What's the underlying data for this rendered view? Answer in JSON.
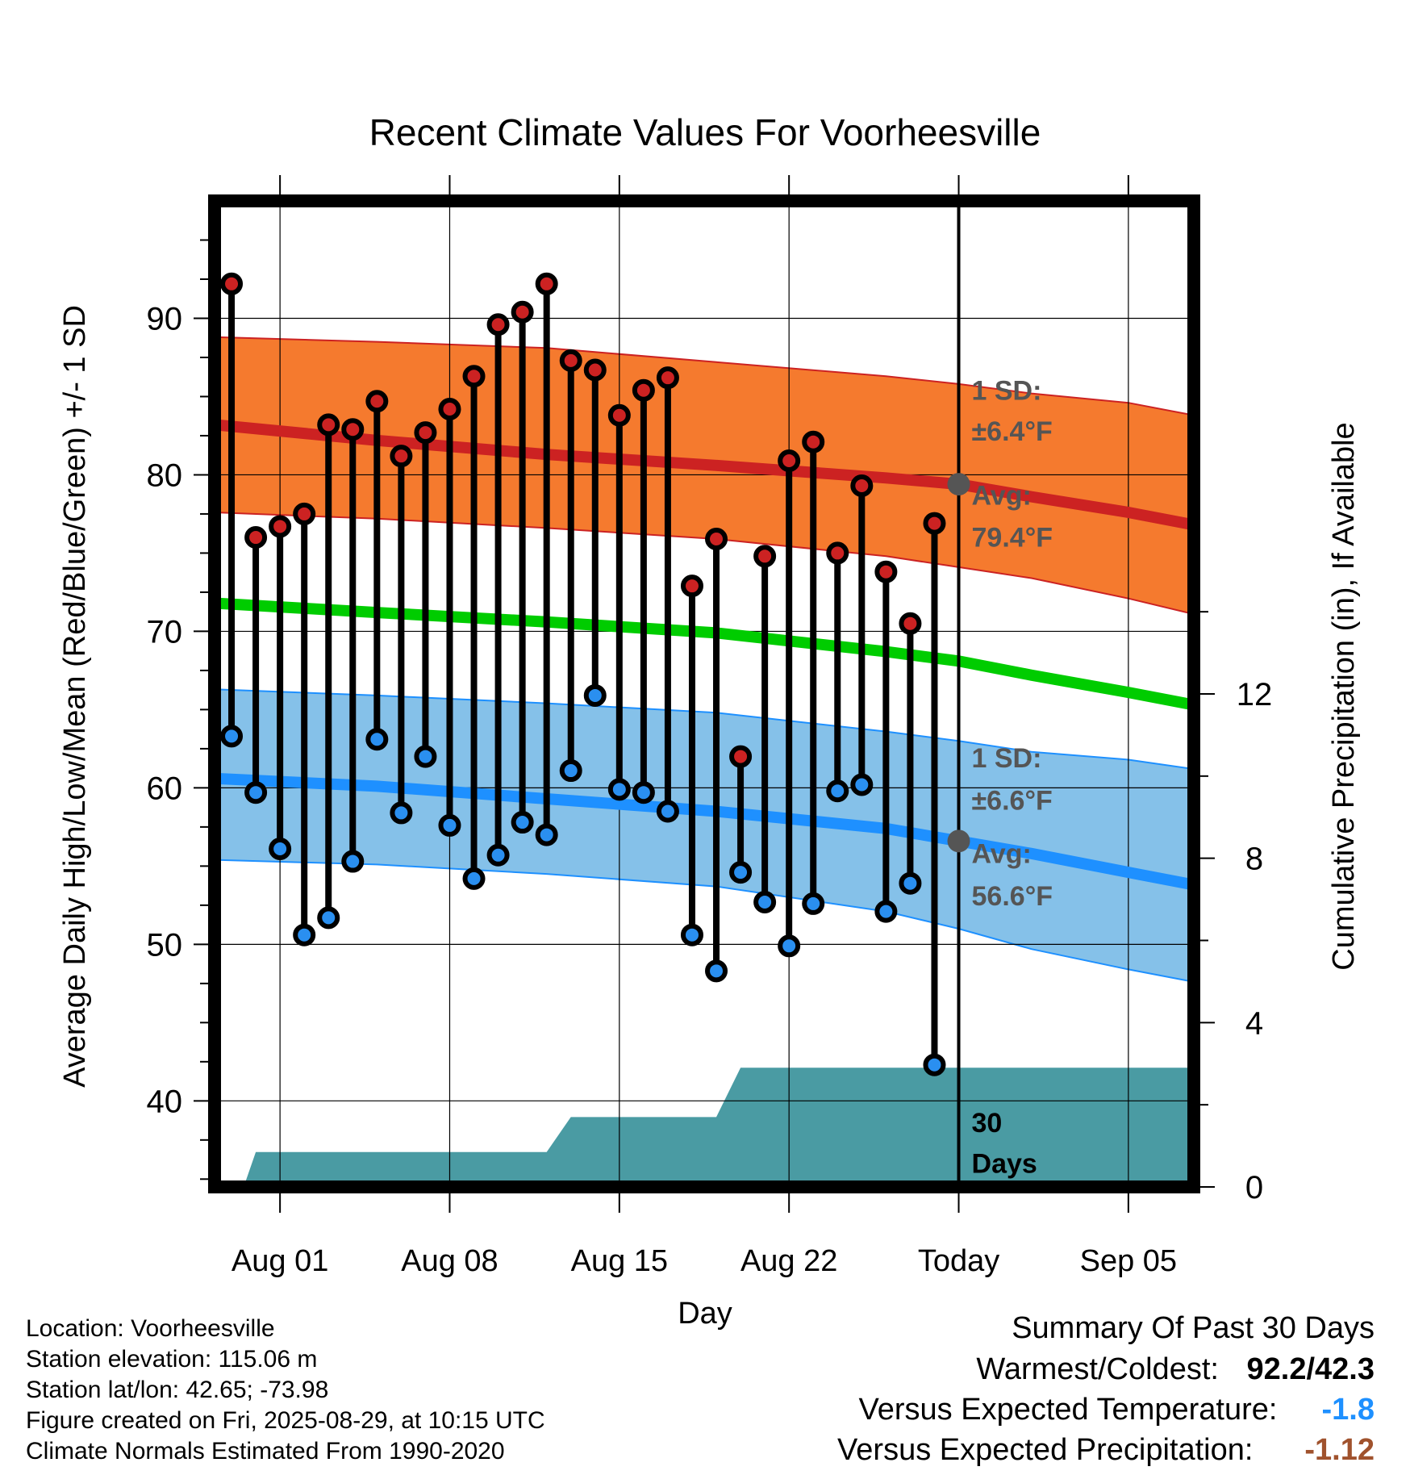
{
  "chart_data": {
    "type": "line",
    "title": "Recent Climate Values For Voorheesville",
    "xlabel": "Day",
    "ylabel": "Average Daily High/Low/Mean (Red/Blue/Green) +/- 1 SD",
    "y2label": "Cumulative Precipitation (in), If Available",
    "ylim": [
      34.5,
      97.5
    ],
    "y2lim": [
      0,
      24
    ],
    "y_ticks": [
      40,
      50,
      60,
      70,
      80,
      90
    ],
    "y2_ticks": [
      0,
      4,
      8,
      12
    ],
    "x_ticks": [
      {
        "label": "Aug 01",
        "day": 1
      },
      {
        "label": "Aug 08",
        "day": 8
      },
      {
        "label": "Aug 15",
        "day": 15
      },
      {
        "label": "Aug 22",
        "day": 22
      },
      {
        "label": "Today",
        "day": 29
      },
      {
        "label": "Sep 05",
        "day": 36
      }
    ],
    "xlim": [
      -1.7,
      38.7
    ],
    "grid": true,
    "days": [
      -1,
      0,
      1,
      2,
      3,
      4,
      5,
      6,
      7,
      8,
      9,
      10,
      11,
      12,
      13,
      14,
      15,
      16,
      17,
      18,
      19,
      20,
      21,
      22,
      23,
      24,
      25,
      26,
      27,
      28
    ],
    "daily_high": [
      92.2,
      76.0,
      76.7,
      77.5,
      83.2,
      82.9,
      84.7,
      81.2,
      82.7,
      84.2,
      86.3,
      89.6,
      90.4,
      92.2,
      87.3,
      86.7,
      83.8,
      85.4,
      86.2,
      72.9,
      75.9,
      62.0,
      74.8,
      80.9,
      82.1,
      75.0,
      79.3,
      73.8,
      70.5,
      76.9
    ],
    "daily_low": [
      63.3,
      59.7,
      56.1,
      50.6,
      51.7,
      55.3,
      63.1,
      58.4,
      62.0,
      57.6,
      54.2,
      55.7,
      57.8,
      57.0,
      61.1,
      65.9,
      59.9,
      59.7,
      58.5,
      50.6,
      48.3,
      54.6,
      52.7,
      49.9,
      52.6,
      59.8,
      60.2,
      52.1,
      53.9,
      42.3
    ],
    "normal_high": {
      "label": "Avg: 79.4°F",
      "sd_label": "1 SD: ±6.4°F",
      "days": [
        -1.7,
        5,
        12,
        19,
        26,
        29,
        32,
        36,
        38.7
      ],
      "mean": [
        83.2,
        82.2,
        81.3,
        80.6,
        79.8,
        79.4,
        78.6,
        77.6,
        76.8
      ],
      "upper": [
        88.8,
        88.5,
        88.1,
        87.2,
        86.3,
        85.8,
        85.2,
        84.6,
        83.8
      ],
      "lower": [
        77.6,
        77.2,
        76.6,
        75.9,
        74.8,
        74.1,
        73.4,
        72.1,
        71.1
      ]
    },
    "normal_mean": {
      "days": [
        -1.7,
        5,
        12,
        19,
        26,
        29,
        32,
        36,
        38.7
      ],
      "values": [
        71.8,
        71.2,
        70.6,
        69.9,
        68.7,
        68.1,
        67.2,
        66.1,
        65.3
      ]
    },
    "normal_low": {
      "label": "Avg: 56.6°F",
      "sd_label": "1 SD: ±6.6°F",
      "days": [
        -1.7,
        5,
        12,
        19,
        26,
        29,
        32,
        36,
        38.7
      ],
      "mean": [
        60.6,
        60.1,
        59.3,
        58.5,
        57.4,
        56.6,
        55.8,
        54.6,
        53.8
      ],
      "upper": [
        66.3,
        65.9,
        65.4,
        64.8,
        63.6,
        63.0,
        62.3,
        61.8,
        61.2
      ],
      "lower": [
        55.4,
        55.1,
        54.5,
        53.7,
        52.1,
        51.0,
        49.7,
        48.4,
        47.6
      ]
    },
    "cumulative_precip": {
      "days": [
        -1.7,
        -0.5,
        0.0,
        12.0,
        13.0,
        19.0,
        20.0,
        38.7
      ],
      "values": [
        0,
        0,
        0.85,
        0.85,
        1.7,
        1.7,
        2.9,
        2.9
      ]
    },
    "today_annotation": "30\nDays",
    "today_line_1": "30",
    "today_line_2": "Days",
    "colors": {
      "high_band": "#f57a2e",
      "high_line": "#cc2222",
      "low_band": "#85c1e9",
      "low_line": "#1e90ff",
      "mean_line": "#00cc00",
      "precip": "#4a9ba3",
      "high_dot": "#cc2222",
      "low_dot": "#2a8ff0",
      "avg_marker": "#555555"
    }
  },
  "footer": {
    "location": "Location: Voorheesville",
    "elevation": "Station elevation: 115.06 m",
    "latlon": "Station lat/lon: 42.65; -73.98",
    "created": "Figure created on Fri, 2025-08-29, at 10:15 UTC",
    "normals": "Climate Normals Estimated From 1990-2020"
  },
  "summary": {
    "title": "Summary Of Past 30 Days",
    "warmest_coldest_label": "Warmest/Coldest:",
    "warmest_coldest_value": "92.2/42.3",
    "temp_label": "Versus Expected Temperature:",
    "temp_value": "-1.8",
    "temp_color": "#1e90ff",
    "precip_label": "Versus Expected Precipitation:",
    "precip_value": "-1.12",
    "precip_color": "#a0522d"
  }
}
